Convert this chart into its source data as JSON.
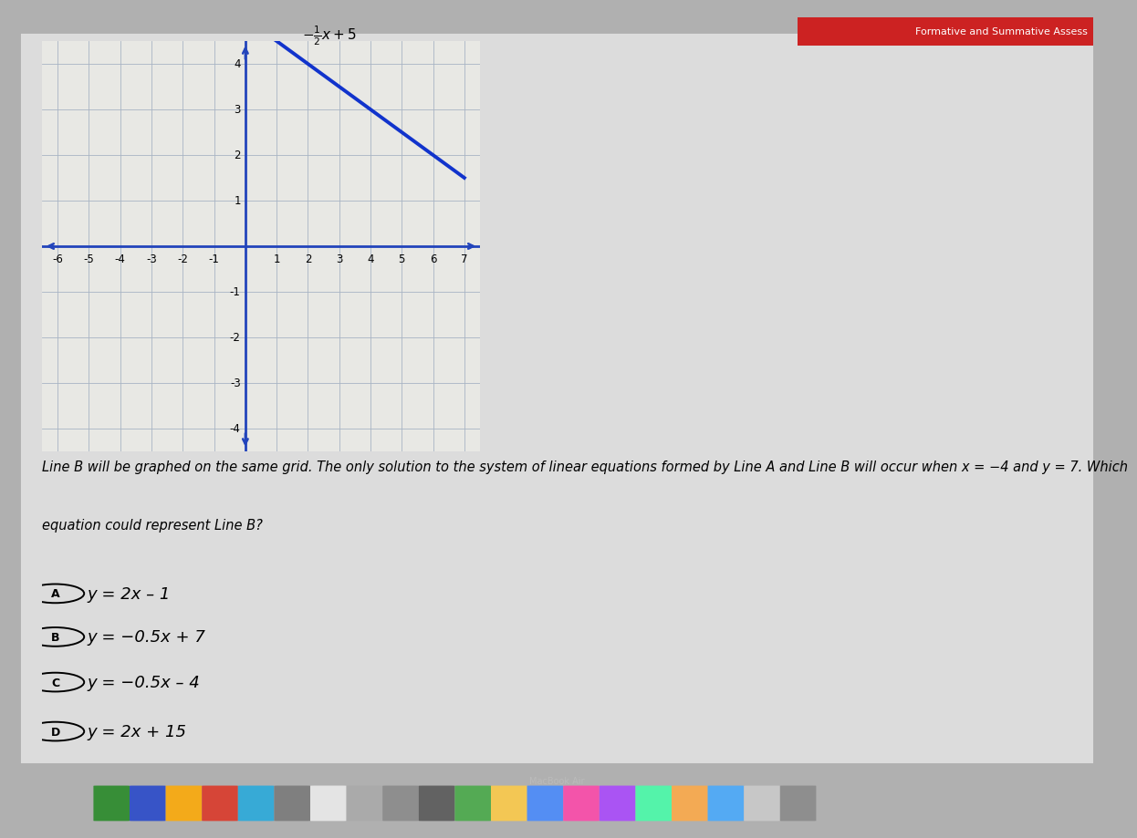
{
  "bg_outer": "#b0b0b0",
  "bg_screen": "#d8d8d8",
  "bg_content": "#dcdcdc",
  "grid_bg": "#e8e8e4",
  "grid_color": "#a8b4c4",
  "axis_color": "#2244bb",
  "line_a_color": "#1133cc",
  "line_a_slope": -0.5,
  "line_a_intercept": 5,
  "xmin": -6,
  "xmax": 7,
  "ymin": -4,
  "ymax": 4,
  "header_text": "Formative and Summative Assess",
  "q_line1": "Line B will be graphed on the same grid. The only solution to the system of linear equations formed by Line A and Line B will occur when x = −4 and y = 7. Which",
  "q_line2": "equation could represent Line B?",
  "options": [
    {
      "label": "A",
      "eq_plain": "y = 2x – 1"
    },
    {
      "label": "B",
      "eq_plain": "y = −0.5x + 7"
    },
    {
      "label": "C",
      "eq_plain": "y = −0.5x – 4"
    },
    {
      "label": "D",
      "eq_plain": "y = 2x + 15"
    }
  ],
  "dock_bg": "#555555",
  "keyboard_bg": "#cc4422",
  "bottom_bar_bg": "#888888"
}
